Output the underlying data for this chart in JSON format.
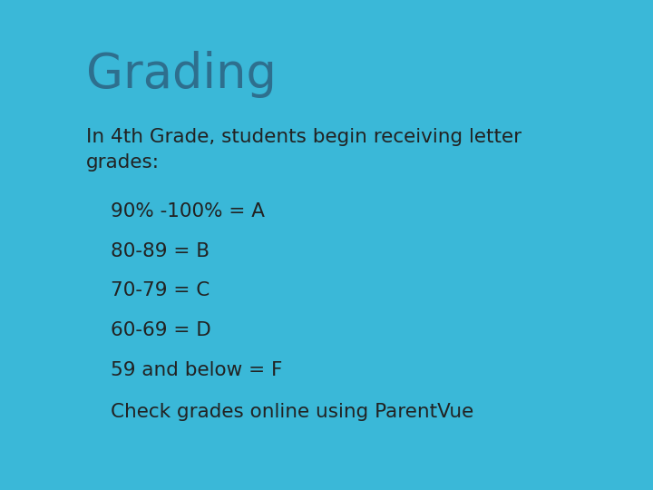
{
  "title": "Grading",
  "title_color": "#2e6f8e",
  "title_fontsize": 38,
  "body_text": "In 4th Grade, students begin receiving letter\ngrades:",
  "body_fontsize": 15.5,
  "body_color": "#222222",
  "bullet_color": "#3ab8d8",
  "bullet_char": "❖",
  "bullets": [
    "90% -100% = A",
    "80-89 = B",
    "70-79 = C",
    "60-69 = D",
    "59 and below = F"
  ],
  "extra_bullet": "Check grades online using ParentVue",
  "background_color": "#ffffff",
  "border_color": "#3ab8d8"
}
